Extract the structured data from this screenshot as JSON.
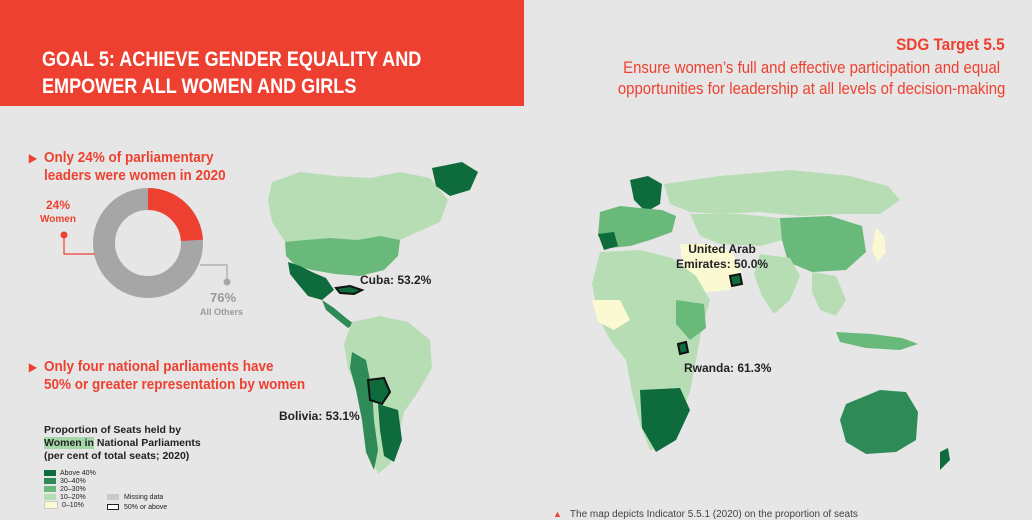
{
  "header": {
    "goal_title_line1": "GOAL 5: ACHIEVE GENDER EQUALITY AND",
    "goal_title_line2": "EMPOWER ALL WOMEN AND GIRLS",
    "target_label": "SDG Target 5.5",
    "target_text_line1": "Ensure women’s full and effective participation and equal",
    "target_text_line2": "opportunities for leadership at all levels of decision-making"
  },
  "stat1": {
    "headline_line1": "Only 24% of parliamentary",
    "headline_line2": "leaders were women in 2020"
  },
  "donut": {
    "women_pct": "24%",
    "women_label": "Women",
    "others_pct": "76%",
    "others_label": "All Others",
    "women_fraction": 0.24,
    "women_color": "#ee4030",
    "others_color": "#a6a6a6"
  },
  "stat2": {
    "headline_line1": "Only four national parliaments have",
    "headline_line2": "50% or greater representation by women"
  },
  "legend": {
    "title_line1": "Proportion of Seats held by",
    "title_line2_highlight": "Women in",
    "title_line2_rest": " National Parliaments",
    "title_line3": "(per cent of total seats; 2020)",
    "items": [
      {
        "label": "Above 40%",
        "color": "#0d6b3c"
      },
      {
        "label": "30–40%",
        "color": "#2e8b57"
      },
      {
        "label": "20–30%",
        "color": "#68b97a"
      },
      {
        "label": "10–20%",
        "color": "#b7ddb4"
      },
      {
        "label": "0–10%",
        "color": "#fbf9d2"
      }
    ],
    "missing_label": "Missing data",
    "missing_color": "#c9c9c9",
    "outline_label": "50% or above"
  },
  "callouts": {
    "cuba": "Cuba: 53.2%",
    "bolivia": "Bolivia: 53.1%",
    "uae_line1": "United Arab",
    "uae_line2": "Emirates: 50.0%",
    "rwanda": "Rwanda: 61.3%"
  },
  "footnote": "The map depicts Indicator 5.5.1 (2020) on the proportion of seats"
}
